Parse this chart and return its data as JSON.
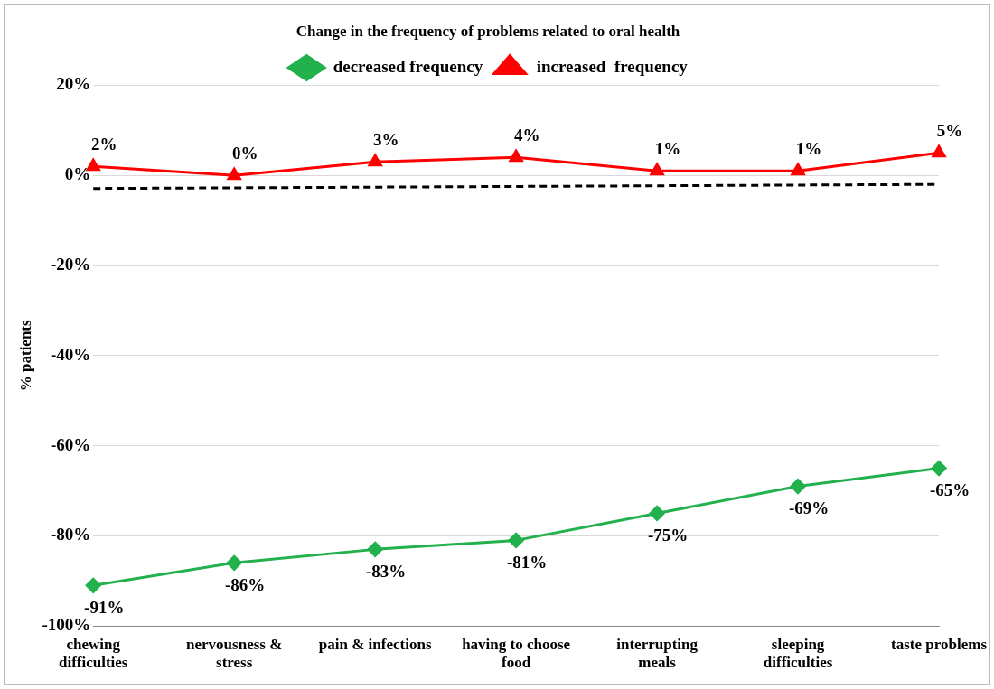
{
  "chart_data": {
    "type": "line",
    "title": "Change in the frequency of problems related to oral health",
    "ylabel": "% patients",
    "categories": [
      "chewing difficulties",
      "nervousness & stress",
      "pain & infections",
      "having to choose food",
      "interrupting meals",
      "sleeping difficulties",
      "taste problems"
    ],
    "series": [
      {
        "name": "decreased frequency",
        "color": "#22b14c",
        "marker": "diamond",
        "values": [
          -91,
          -86,
          -83,
          -81,
          -75,
          -69,
          -65
        ],
        "value_labels": [
          "-91%",
          "-86%",
          "-83%",
          "-81%",
          "-75%",
          "-69%",
          "-65%"
        ]
      },
      {
        "name": "increased  frequency",
        "color": "#ff0000",
        "marker": "triangle",
        "values": [
          2,
          0,
          3,
          4,
          1,
          1,
          5
        ],
        "value_labels": [
          "2%",
          "0%",
          "3%",
          "4%",
          "1%",
          "1%",
          "5%"
        ]
      },
      {
        "type": "line",
        "color": "#000000",
        "line_style": "dashed",
        "marker": "none",
        "values": [
          -2.9,
          -2.75,
          -2.6,
          -2.45,
          -2.3,
          -2.15,
          -2.0
        ]
      }
    ],
    "ylim": [
      -100,
      20
    ],
    "yticks": [
      {
        "value": -100,
        "label": "-100%"
      },
      {
        "value": -80,
        "label": "-80%"
      },
      {
        "value": -60,
        "label": "-60%"
      },
      {
        "value": -40,
        "label": "-40%"
      },
      {
        "value": -20,
        "label": "-20%"
      },
      {
        "value": 0,
        "label": "0%"
      },
      {
        "value": 20,
        "label": "20%"
      }
    ],
    "grid": "y",
    "legend": "top"
  }
}
